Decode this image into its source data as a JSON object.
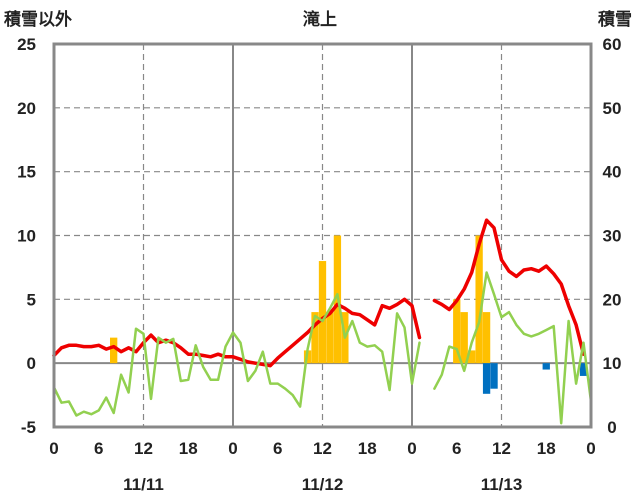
{
  "chart_data": {
    "type": "bar+line",
    "title": "滝上",
    "left_axis_label": "積雪以外",
    "right_axis_label": "積雪",
    "ylim_left": [
      -5,
      25
    ],
    "yticks_left": [
      "25",
      "20",
      "15",
      "10",
      "5",
      "0",
      "-5"
    ],
    "ylim_right": [
      0,
      60
    ],
    "yticks_right": [
      "60",
      "50",
      "40",
      "30",
      "20",
      "10",
      "0"
    ],
    "xlim": [
      0,
      72
    ],
    "xticks": [
      "0",
      "6",
      "12",
      "18",
      "0",
      "6",
      "12",
      "18",
      "0",
      "6",
      "12",
      "18",
      "0"
    ],
    "date_labels": [
      "11/11",
      "11/12",
      "11/13"
    ],
    "day_dividers": [
      0,
      24,
      48,
      72
    ],
    "dashed_noon": [
      12,
      36,
      60
    ],
    "colors": {
      "red": "#ee0000",
      "green": "#92d050",
      "orange": "#ffc000",
      "blue": "#0070c0",
      "purple": "#7030a0",
      "zero": "#888888",
      "grid": "#888888",
      "frame": "#888888"
    },
    "series": [
      {
        "color_key": "red",
        "kind": "line",
        "axis": "left",
        "points": [
          [
            0,
            0.6
          ],
          [
            1,
            1.2
          ],
          [
            2,
            1.4
          ],
          [
            3,
            1.4
          ],
          [
            4,
            1.3
          ],
          [
            5,
            1.3
          ],
          [
            6,
            1.4
          ],
          [
            7,
            1.1
          ],
          [
            8,
            1.3
          ],
          [
            9,
            0.9
          ],
          [
            10,
            1.2
          ],
          [
            11,
            0.9
          ],
          [
            12,
            1.6
          ],
          [
            13,
            2.2
          ],
          [
            14,
            1.6
          ],
          [
            15,
            1.8
          ],
          [
            16,
            1.6
          ],
          [
            17,
            1.2
          ],
          [
            18,
            0.7
          ],
          [
            19,
            0.7
          ],
          [
            20,
            0.6
          ],
          [
            21,
            0.5
          ],
          [
            22,
            0.7
          ],
          [
            23,
            0.5
          ],
          [
            24,
            0.5
          ],
          [
            25,
            0.3
          ],
          [
            26,
            0.1
          ],
          [
            27,
            0.0
          ],
          [
            28,
            -0.1
          ],
          [
            29,
            -0.2
          ],
          [
            30,
            0.4
          ],
          [
            31,
            0.9
          ],
          [
            32,
            1.4
          ],
          [
            33,
            1.9
          ],
          [
            34,
            2.4
          ],
          [
            35,
            3.0
          ],
          [
            36,
            3.5
          ],
          [
            37,
            3.9
          ],
          [
            38,
            4.6
          ],
          [
            39,
            4.3
          ],
          [
            40,
            3.9
          ],
          [
            41,
            3.8
          ],
          [
            42,
            3.4
          ],
          [
            43,
            3.0
          ],
          [
            44,
            4.5
          ],
          [
            45,
            4.3
          ],
          [
            46,
            4.6
          ],
          [
            47,
            5.0
          ],
          [
            48,
            4.5
          ],
          [
            49,
            2.0
          ],
          null,
          [
            51,
            4.9
          ],
          [
            52,
            4.6
          ],
          [
            53,
            4.2
          ],
          [
            54,
            4.9
          ],
          [
            55,
            5.8
          ],
          [
            56,
            7.1
          ],
          [
            57,
            9.3
          ],
          [
            58,
            11.2
          ],
          [
            59,
            10.6
          ],
          [
            60,
            8.1
          ],
          [
            61,
            7.2
          ],
          [
            62,
            6.8
          ],
          [
            63,
            7.3
          ],
          [
            64,
            7.4
          ],
          [
            65,
            7.2
          ],
          [
            66,
            7.6
          ],
          [
            67,
            7.0
          ],
          [
            68,
            6.2
          ],
          [
            69,
            4.5
          ],
          [
            70,
            3.0
          ],
          [
            71,
            0.7
          ]
        ]
      },
      {
        "color_key": "green",
        "kind": "line",
        "axis": "left",
        "points": [
          [
            0,
            -1.9
          ],
          [
            1,
            -3.1
          ],
          [
            2,
            -3.0
          ],
          [
            3,
            -4.1
          ],
          [
            4,
            -3.8
          ],
          [
            5,
            -4.0
          ],
          [
            6,
            -3.7
          ],
          [
            7,
            -2.7
          ],
          [
            8,
            -3.9
          ],
          [
            9,
            -0.9
          ],
          [
            10,
            -2.3
          ],
          [
            11,
            2.7
          ],
          [
            12,
            2.3
          ],
          [
            13,
            -2.8
          ],
          [
            14,
            2.0
          ],
          [
            15,
            1.6
          ],
          [
            16,
            1.9
          ],
          [
            17,
            -1.4
          ],
          [
            18,
            -1.3
          ],
          [
            19,
            1.4
          ],
          [
            20,
            -0.3
          ],
          [
            21,
            -1.3
          ],
          [
            22,
            -1.3
          ],
          [
            23,
            1.3
          ],
          [
            24,
            2.4
          ],
          [
            25,
            1.6
          ],
          [
            26,
            -1.4
          ],
          [
            27,
            -0.6
          ],
          [
            28,
            0.9
          ],
          [
            29,
            -1.6
          ],
          [
            30,
            -1.6
          ],
          [
            31,
            -2.0
          ],
          [
            32,
            -2.5
          ],
          [
            33,
            -3.4
          ],
          [
            34,
            1.1
          ],
          [
            35,
            3.7
          ],
          [
            36,
            3.3
          ],
          [
            37,
            4.3
          ],
          [
            38,
            5.4
          ],
          [
            39,
            2.0
          ],
          [
            40,
            3.3
          ],
          [
            41,
            1.6
          ],
          [
            42,
            1.3
          ],
          [
            43,
            1.4
          ],
          [
            44,
            0.9
          ],
          [
            45,
            -2.1
          ],
          [
            46,
            3.9
          ],
          [
            47,
            2.8
          ],
          [
            48,
            -1.6
          ],
          [
            49,
            1.6
          ],
          null,
          [
            51,
            -2.0
          ],
          [
            52,
            -0.9
          ],
          [
            53,
            1.3
          ],
          [
            54,
            1.1
          ],
          [
            55,
            -0.6
          ],
          [
            56,
            1.6
          ],
          [
            57,
            3.2
          ],
          [
            58,
            7.1
          ],
          [
            59,
            5.4
          ],
          [
            60,
            3.6
          ],
          [
            61,
            4.0
          ],
          [
            62,
            3.0
          ],
          [
            63,
            2.3
          ],
          [
            64,
            2.1
          ],
          [
            65,
            2.3
          ],
          [
            66,
            2.6
          ],
          [
            67,
            2.9
          ],
          [
            68,
            -4.7
          ],
          [
            69,
            3.3
          ],
          [
            70,
            -1.6
          ],
          [
            71,
            1.6
          ],
          [
            72,
            -3.0
          ]
        ]
      },
      {
        "color_key": "purple",
        "kind": "line",
        "axis": "left",
        "points": [
          [
            0,
            -5
          ],
          [
            72,
            -5
          ]
        ]
      }
    ],
    "bars_orange": [
      [
        8,
        2
      ],
      [
        34,
        1
      ],
      [
        35,
        4
      ],
      [
        36,
        8
      ],
      [
        37,
        4
      ],
      [
        38,
        10
      ],
      [
        39,
        4
      ],
      [
        54,
        5
      ],
      [
        55,
        4
      ],
      [
        56,
        1
      ],
      [
        57,
        10
      ],
      [
        58,
        4
      ]
    ],
    "bars_blue": [
      [
        58,
        -2.4
      ],
      [
        59,
        -2.0
      ],
      [
        66,
        -0.5
      ],
      [
        71,
        -1.0
      ]
    ]
  }
}
